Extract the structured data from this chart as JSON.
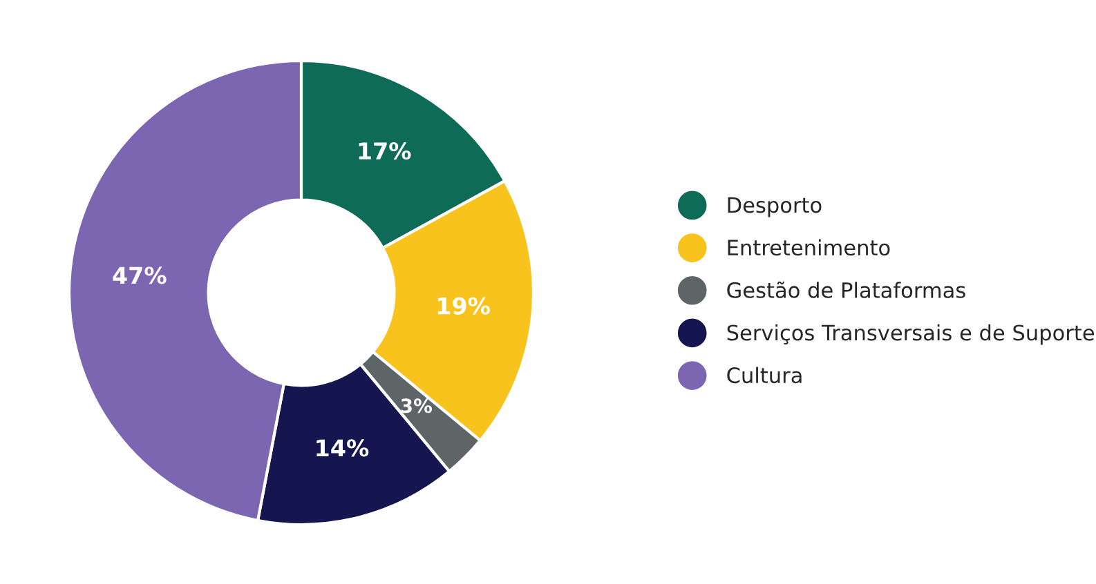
{
  "chart_data": {
    "type": "donut",
    "categories": [
      "Desporto",
      "Entretenimento",
      "Gestão de Plataformas",
      "Serviços Transversais e de Suporte",
      "Cultura"
    ],
    "values": [
      17,
      19,
      3,
      14,
      47
    ],
    "colors": [
      "#0d6b58",
      "#f7c31c",
      "#5d6567",
      "#15154f",
      "#7c66b2"
    ],
    "value_labels": [
      "17%",
      "19%",
      "3%",
      "14%",
      "47%"
    ],
    "legend": "right"
  }
}
